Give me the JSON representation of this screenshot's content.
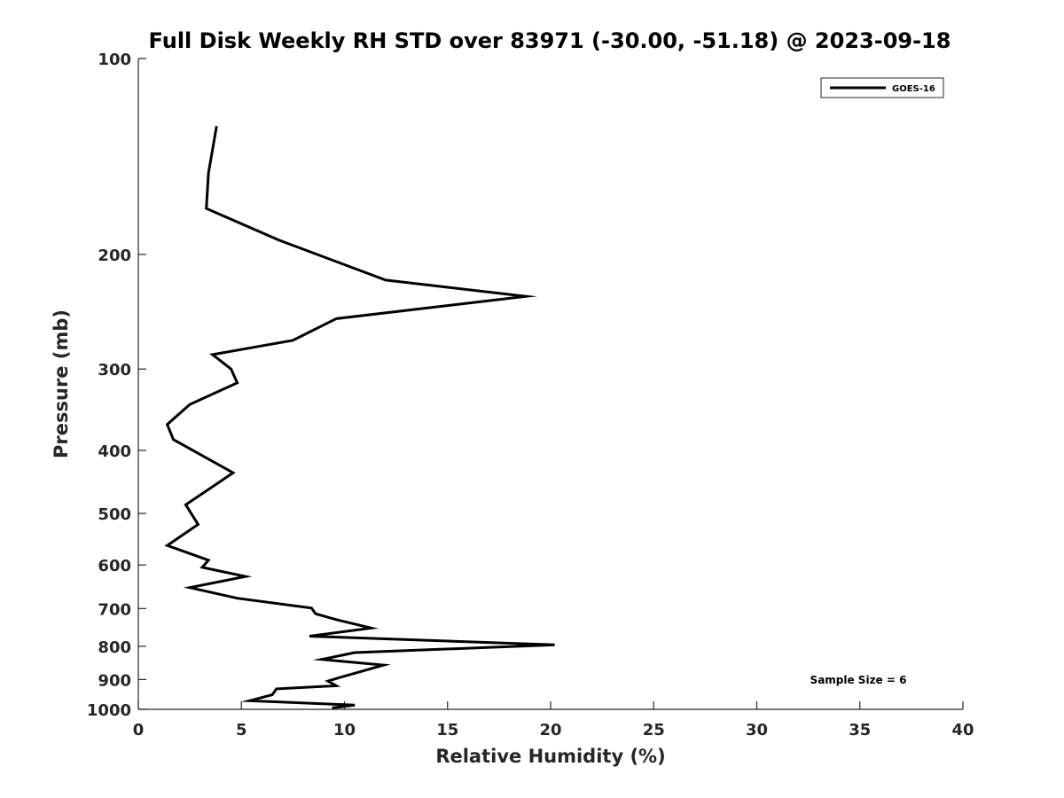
{
  "chart_data": {
    "type": "line",
    "title": "Full Disk Weekly RH STD over 83971 (-30.00, -51.18) @ 2023-09-18",
    "xlabel": "Relative Humidity (%)",
    "ylabel": "Pressure (mb)",
    "xlim": [
      0,
      40
    ],
    "ylim": [
      100,
      1000
    ],
    "yscale": "log",
    "y_reversed": true,
    "grid": false,
    "x_ticks": [
      0,
      5,
      10,
      15,
      20,
      25,
      30,
      35,
      40
    ],
    "x_tick_labels": [
      "0",
      "5",
      "10",
      "15",
      "20",
      "25",
      "30",
      "35",
      "40"
    ],
    "y_ticks": [
      100,
      200,
      300,
      400,
      500,
      600,
      700,
      800,
      900,
      1000
    ],
    "y_tick_labels": [
      "100",
      "200",
      "300",
      "400",
      "500",
      "600",
      "700",
      "800",
      "900",
      "1000"
    ],
    "legend": {
      "position": "top-right",
      "entries": [
        "GOES-16"
      ]
    },
    "annotation": "Sample Size = 6",
    "series": [
      {
        "name": "GOES-16",
        "color": "#000000",
        "x": [
          3.8,
          3.4,
          3.3,
          6.8,
          12.0,
          18.8,
          9.6,
          7.5,
          3.6,
          4.5,
          4.8,
          2.5,
          1.4,
          1.7,
          4.6,
          2.3,
          2.9,
          1.4,
          3.4,
          3.1,
          5.2,
          2.5,
          4.8,
          8.4,
          8.6,
          9.6,
          11.3,
          8.3,
          20.2,
          10.5,
          8.9,
          11.9,
          10.5,
          9.7,
          9.2,
          9.6,
          6.7,
          6.5,
          5.4,
          10.5,
          9.4
        ],
        "y": [
          127,
          150,
          170,
          190,
          219,
          232,
          251,
          271,
          285,
          300,
          315,
          340,
          365,
          385,
          433,
          485,
          520,
          560,
          590,
          605,
          625,
          650,
          675,
          699,
          713,
          728,
          750,
          772,
          796,
          818,
          838,
          855,
          880,
          895,
          905,
          920,
          930,
          950,
          970,
          985,
          995
        ]
      }
    ]
  }
}
